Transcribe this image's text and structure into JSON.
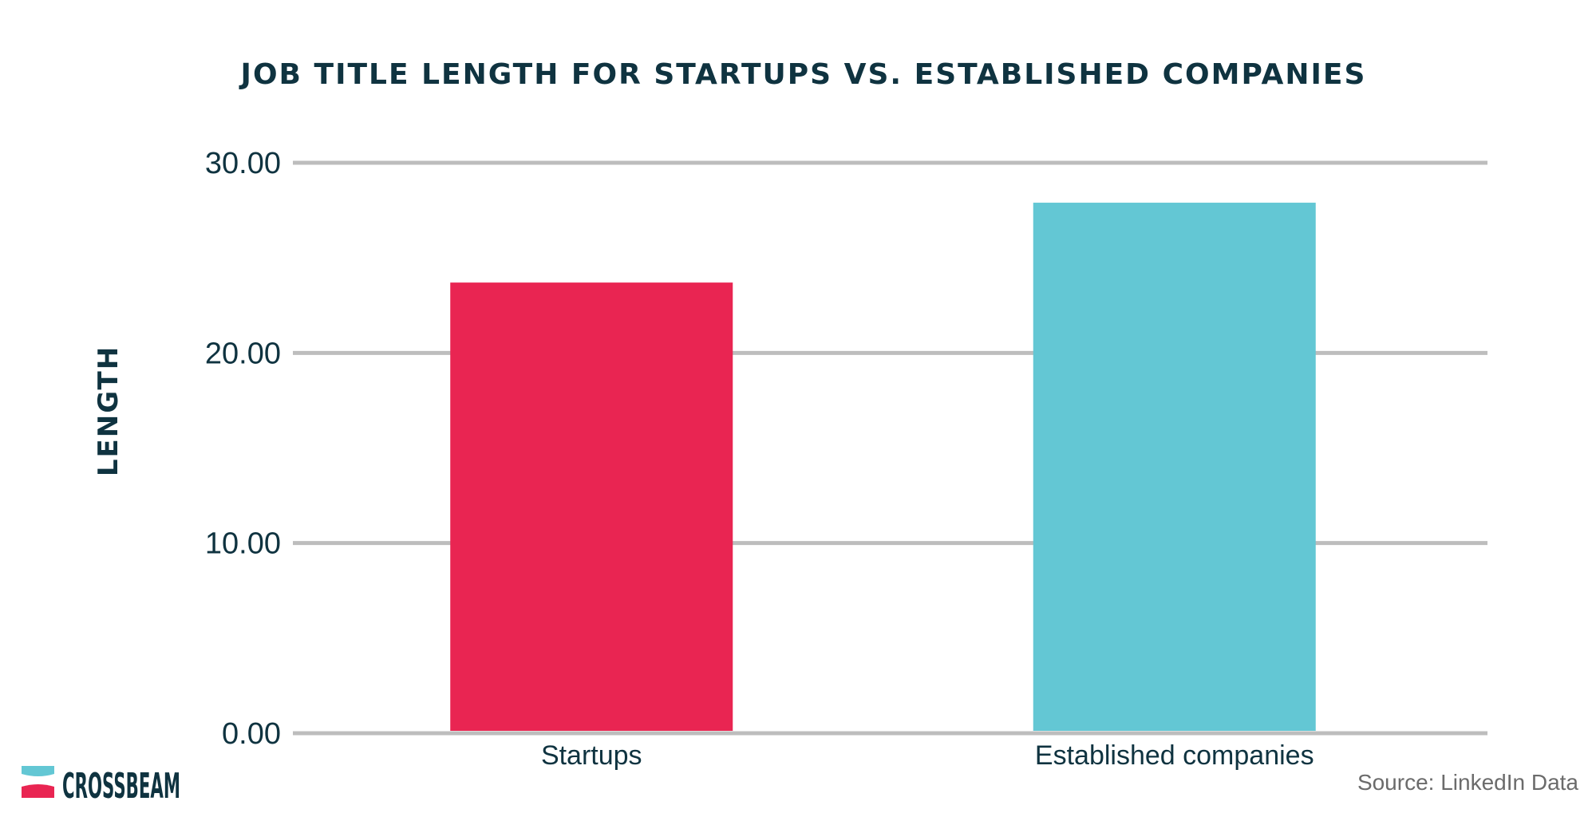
{
  "chart_data": {
    "type": "bar",
    "title": "JOB TITLE LENGTH FOR STARTUPS VS. ESTABLISHED COMPANIES",
    "xlabel": "",
    "ylabel": "LENGTH",
    "categories": [
      "Startups",
      "Established companies"
    ],
    "values": [
      23.7,
      27.9
    ],
    "bar_colors": [
      "#e92552",
      "#63c7d4"
    ],
    "ylim": [
      0,
      30
    ],
    "yticks": [
      "0.00",
      "10.00",
      "20.00",
      "30.00"
    ],
    "ytick_values": [
      0,
      10,
      20,
      30
    ],
    "grid": true,
    "legend": "none"
  },
  "branding": {
    "logo_text": "CROSSBEAM",
    "logo_colors": [
      "#63c7d4",
      "#e92552"
    ]
  },
  "source": "Source: LinkedIn Data"
}
